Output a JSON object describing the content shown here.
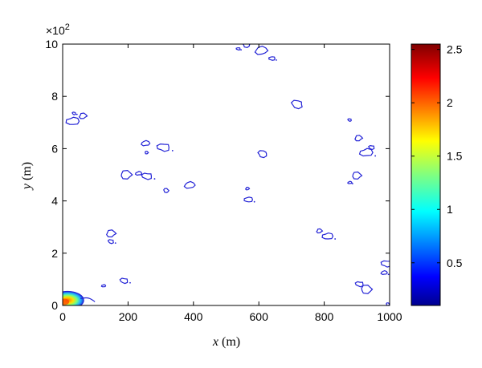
{
  "chart_data": {
    "type": "contour",
    "xlabel_var": "x",
    "xlabel_unit": "(m)",
    "ylabel_var": "y",
    "ylabel_unit": "(m)",
    "y_multiplier_base": "×10",
    "y_multiplier_exp": "2",
    "xlim": [
      0,
      1000
    ],
    "ylim": [
      0,
      10
    ],
    "x_ticks": [
      "0",
      "200",
      "400",
      "600",
      "800",
      "1000"
    ],
    "y_ticks": [
      "0",
      "2",
      "4",
      "6",
      "8",
      "10"
    ],
    "colorbar": {
      "range": [
        0.1,
        2.55
      ],
      "ticks": [
        "0.5",
        "1",
        "1.5",
        "2",
        "2.5"
      ],
      "colormap": "jet"
    },
    "contour_color": "#2323d6",
    "hotspot": {
      "x": 15,
      "y": 0.2,
      "peak": 2.0
    },
    "patches": [
      {
        "x": 35,
        "y": 7.35
      },
      {
        "x": 62,
        "y": 7.25
      },
      {
        "x": 30,
        "y": 7.05
      },
      {
        "x": 148,
        "y": 2.45
      },
      {
        "x": 148,
        "y": 2.75
      },
      {
        "x": 125,
        "y": 0.75
      },
      {
        "x": 188,
        "y": 0.95
      },
      {
        "x": 195,
        "y": 5.0
      },
      {
        "x": 232,
        "y": 5.05
      },
      {
        "x": 258,
        "y": 4.95
      },
      {
        "x": 257,
        "y": 5.85
      },
      {
        "x": 253,
        "y": 6.2
      },
      {
        "x": 308,
        "y": 6.05
      },
      {
        "x": 317,
        "y": 4.4
      },
      {
        "x": 388,
        "y": 4.6
      },
      {
        "x": 537,
        "y": 9.82
      },
      {
        "x": 562,
        "y": 9.98
      },
      {
        "x": 607,
        "y": 9.75
      },
      {
        "x": 640,
        "y": 9.45
      },
      {
        "x": 612,
        "y": 5.8
      },
      {
        "x": 565,
        "y": 4.47
      },
      {
        "x": 568,
        "y": 4.05
      },
      {
        "x": 718,
        "y": 7.7
      },
      {
        "x": 785,
        "y": 2.85
      },
      {
        "x": 810,
        "y": 2.65
      },
      {
        "x": 878,
        "y": 7.1
      },
      {
        "x": 905,
        "y": 6.4
      },
      {
        "x": 928,
        "y": 5.85
      },
      {
        "x": 945,
        "y": 6.05
      },
      {
        "x": 900,
        "y": 4.97
      },
      {
        "x": 878,
        "y": 4.7
      },
      {
        "x": 908,
        "y": 0.82
      },
      {
        "x": 930,
        "y": 0.62
      },
      {
        "x": 983,
        "y": 1.25
      },
      {
        "x": 990,
        "y": 1.6
      },
      {
        "x": 995,
        "y": 0.05
      }
    ]
  }
}
